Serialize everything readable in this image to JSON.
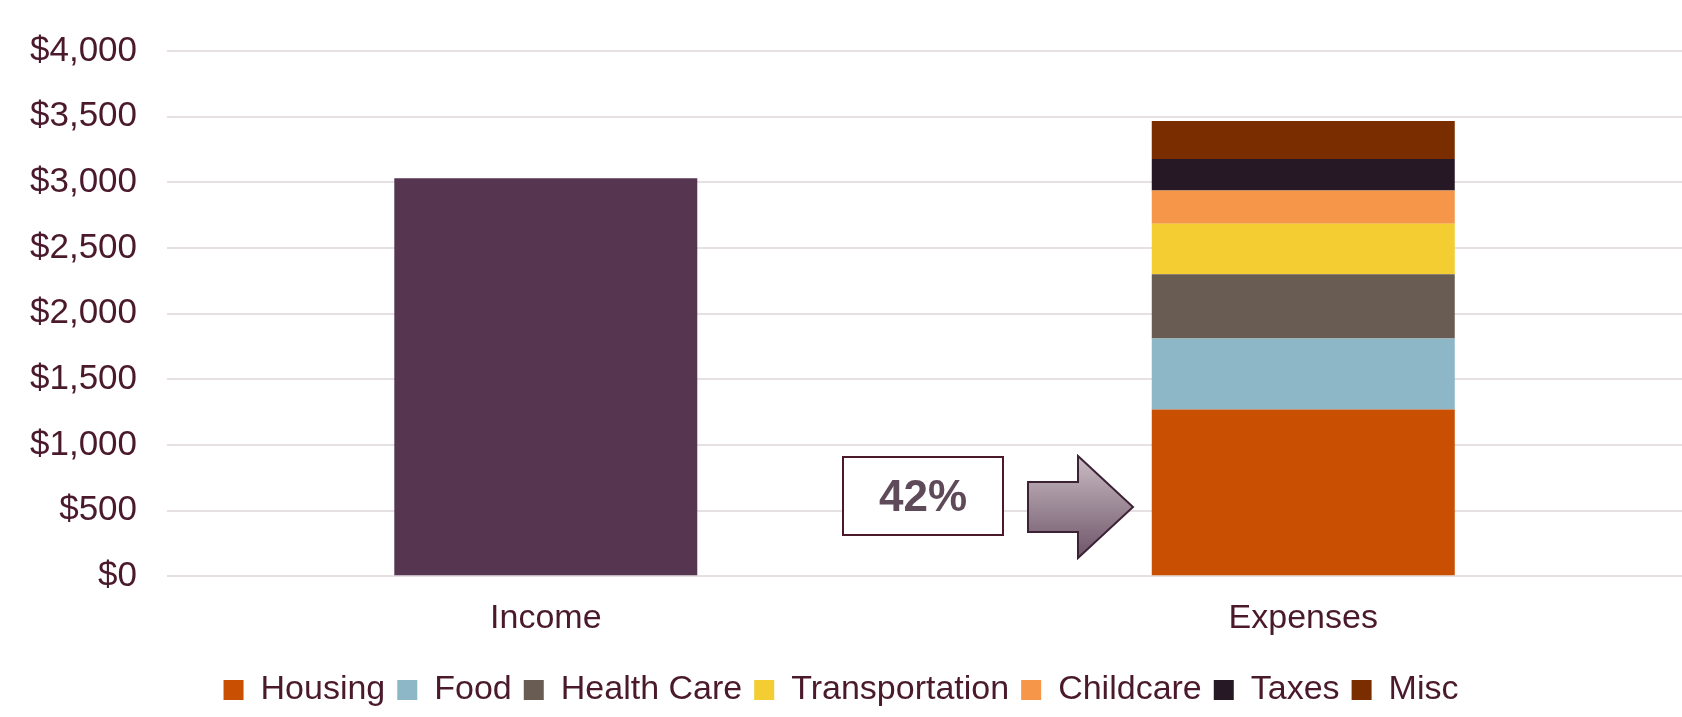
{
  "chart_data": {
    "type": "bar",
    "stacked": true,
    "categories": [
      "Income",
      "Expenses"
    ],
    "series": [
      {
        "color": "#563551",
        "values": [
          3030,
          null
        ]
      },
      {
        "name": "Housing",
        "color": "#c94f02",
        "values": [
          null,
          1270
        ]
      },
      {
        "name": "Food",
        "color": "#8db6c6",
        "values": [
          null,
          540
        ]
      },
      {
        "name": "Health Care",
        "color": "#695d53",
        "values": [
          null,
          490
        ]
      },
      {
        "name": "Transportation",
        "color": "#f4cd32",
        "values": [
          null,
          385
        ]
      },
      {
        "name": "Childcare",
        "color": "#f69648",
        "values": [
          null,
          252
        ]
      },
      {
        "name": "Taxes",
        "color": "#261925",
        "values": [
          null,
          240
        ]
      },
      {
        "name": "Misc",
        "color": "#7a2e00",
        "values": [
          null,
          290
        ]
      }
    ],
    "ylim": [
      0,
      4000
    ],
    "yticks": [
      {
        "value": 0,
        "label": "$0"
      },
      {
        "value": 500,
        "label": "$500"
      },
      {
        "value": 1000,
        "label": "$1,000"
      },
      {
        "value": 1500,
        "label": "$1,500"
      },
      {
        "value": 2000,
        "label": "$2,000"
      },
      {
        "value": 2500,
        "label": "$2,500"
      },
      {
        "value": 3000,
        "label": "$3,000"
      },
      {
        "value": 3500,
        "label": "$3,500"
      },
      {
        "value": 4000,
        "label": "$4,000"
      }
    ],
    "grid": "y",
    "legend": "bottom",
    "annotations": [
      "42%"
    ]
  }
}
